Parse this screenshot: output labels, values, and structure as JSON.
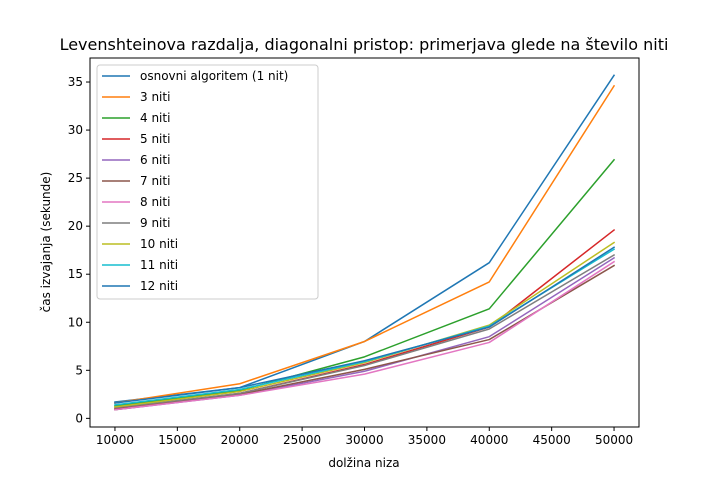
{
  "chart_data": {
    "type": "line",
    "title": "Levenshteinova razdalja, diagonalni pristop: primerjava glede na število niti",
    "xlabel": "dolžina niza",
    "ylabel": "čas izvajanja (sekunde)",
    "x": [
      10000,
      20000,
      30000,
      40000,
      50000
    ],
    "xlim": [
      8000,
      52000
    ],
    "ylim": [
      -0.9,
      37.5
    ],
    "xticks": [
      10000,
      15000,
      20000,
      25000,
      30000,
      35000,
      40000,
      45000,
      50000
    ],
    "yticks": [
      0,
      5,
      10,
      15,
      20,
      25,
      30,
      35
    ],
    "grid": false,
    "legend_position": "top-left",
    "series": [
      {
        "name": "osnovni algoritem (1 nit)",
        "color": "#1f77b4",
        "values": [
          1.7,
          3.2,
          8.0,
          16.2,
          35.7
        ]
      },
      {
        "name": "3 niti",
        "color": "#ff7f0e",
        "values": [
          1.6,
          3.6,
          8.0,
          14.2,
          34.6
        ]
      },
      {
        "name": "4 niti",
        "color": "#2ca02c",
        "values": [
          1.3,
          2.9,
          6.4,
          11.4,
          26.9
        ]
      },
      {
        "name": "5 niti",
        "color": "#d62728",
        "values": [
          1.0,
          2.6,
          5.6,
          9.5,
          19.6
        ]
      },
      {
        "name": "6 niti",
        "color": "#9467bd",
        "values": [
          0.9,
          2.4,
          4.9,
          8.5,
          16.7
        ]
      },
      {
        "name": "7 niti",
        "color": "#8c564b",
        "values": [
          0.9,
          2.5,
          5.1,
          8.2,
          15.9
        ]
      },
      {
        "name": "8 niti",
        "color": "#e377c2",
        "values": [
          0.9,
          2.4,
          4.6,
          7.9,
          16.3
        ]
      },
      {
        "name": "9 niti",
        "color": "#7f7f7f",
        "values": [
          1.1,
          2.6,
          5.5,
          9.3,
          17.0
        ]
      },
      {
        "name": "10 niti",
        "color": "#bcbd22",
        "values": [
          1.2,
          2.8,
          5.8,
          9.7,
          18.3
        ]
      },
      {
        "name": "11 niti",
        "color": "#17becf",
        "values": [
          1.4,
          3.0,
          5.9,
          9.6,
          17.6
        ]
      },
      {
        "name": "12 niti",
        "color": "#1f77b4",
        "values": [
          1.6,
          3.2,
          6.0,
          9.5,
          17.8
        ]
      }
    ]
  }
}
